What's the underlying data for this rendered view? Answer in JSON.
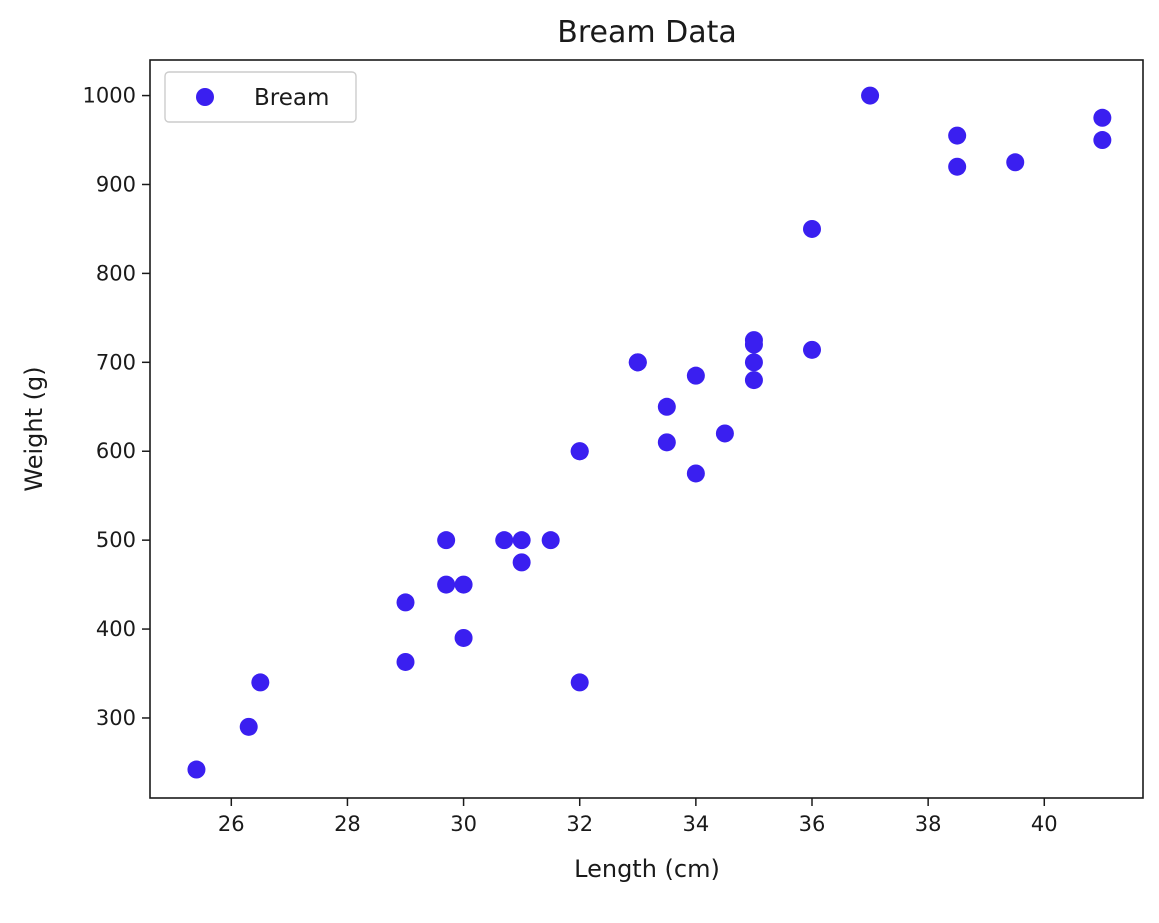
{
  "chart_data": {
    "type": "scatter",
    "title": "Bream Data",
    "xlabel": "Length (cm)",
    "ylabel": "Weight (g)",
    "xlim": [
      24.6,
      41.7
    ],
    "ylim": [
      210,
      1040
    ],
    "xticks": [
      26,
      28,
      30,
      32,
      34,
      36,
      38,
      40
    ],
    "yticks": [
      300,
      400,
      500,
      600,
      700,
      800,
      900,
      1000
    ],
    "grid": false,
    "legend": {
      "position": "top-left",
      "entries": [
        "Bream"
      ]
    },
    "series": [
      {
        "name": "Bream",
        "color": "#3a1ff0",
        "points": [
          {
            "x": 25.4,
            "y": 242
          },
          {
            "x": 26.3,
            "y": 290
          },
          {
            "x": 26.5,
            "y": 340
          },
          {
            "x": 29.0,
            "y": 363
          },
          {
            "x": 29.0,
            "y": 430
          },
          {
            "x": 29.7,
            "y": 450
          },
          {
            "x": 29.7,
            "y": 500
          },
          {
            "x": 30.0,
            "y": 390
          },
          {
            "x": 30.0,
            "y": 450
          },
          {
            "x": 30.7,
            "y": 500
          },
          {
            "x": 31.0,
            "y": 475
          },
          {
            "x": 31.0,
            "y": 500
          },
          {
            "x": 31.5,
            "y": 500
          },
          {
            "x": 32.0,
            "y": 340
          },
          {
            "x": 32.0,
            "y": 600
          },
          {
            "x": 32.0,
            "y": 600
          },
          {
            "x": 33.0,
            "y": 700
          },
          {
            "x": 33.0,
            "y": 700
          },
          {
            "x": 33.5,
            "y": 610
          },
          {
            "x": 33.5,
            "y": 650
          },
          {
            "x": 34.0,
            "y": 575
          },
          {
            "x": 34.0,
            "y": 685
          },
          {
            "x": 34.5,
            "y": 620
          },
          {
            "x": 35.0,
            "y": 680
          },
          {
            "x": 35.0,
            "y": 700
          },
          {
            "x": 35.0,
            "y": 725
          },
          {
            "x": 35.0,
            "y": 720
          },
          {
            "x": 36.0,
            "y": 714
          },
          {
            "x": 36.0,
            "y": 850
          },
          {
            "x": 37.0,
            "y": 1000
          },
          {
            "x": 38.5,
            "y": 920
          },
          {
            "x": 38.5,
            "y": 955
          },
          {
            "x": 39.5,
            "y": 925
          },
          {
            "x": 41.0,
            "y": 975
          },
          {
            "x": 41.0,
            "y": 950
          }
        ]
      }
    ]
  }
}
